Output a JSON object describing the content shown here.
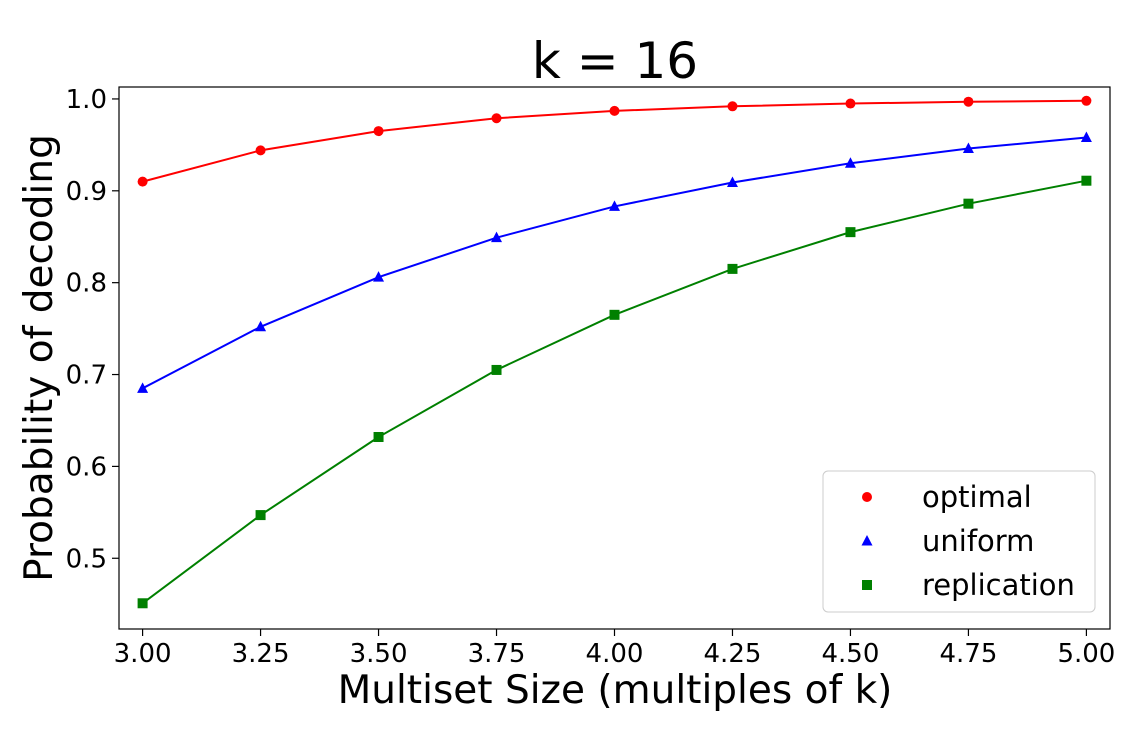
{
  "chart_data": {
    "type": "line",
    "title": "k = 16",
    "xlabel": "Multiset Size (multiples of k)",
    "ylabel": "Probability of decoding",
    "x": [
      3.0,
      3.25,
      3.5,
      3.75,
      4.0,
      4.25,
      4.5,
      4.75,
      5.0
    ],
    "x_tick_labels": [
      "3.00",
      "3.25",
      "3.50",
      "3.75",
      "4.00",
      "4.25",
      "4.50",
      "4.75",
      "5.00"
    ],
    "y_ticks": [
      0.5,
      0.6,
      0.7,
      0.8,
      0.9,
      1.0
    ],
    "y_tick_labels": [
      "0.5",
      "0.6",
      "0.7",
      "0.8",
      "0.9",
      "1.0"
    ],
    "xlim": [
      2.95,
      5.05
    ],
    "ylim": [
      0.423,
      1.013
    ],
    "grid": false,
    "legend_position": "lower-right",
    "series": [
      {
        "name": "optimal",
        "color": "#ff0000",
        "marker": "circle",
        "values": [
          0.91,
          0.944,
          0.965,
          0.979,
          0.987,
          0.992,
          0.995,
          0.997,
          0.998
        ]
      },
      {
        "name": "uniform",
        "color": "#0000ff",
        "marker": "triangle",
        "values": [
          0.685,
          0.752,
          0.806,
          0.849,
          0.883,
          0.909,
          0.93,
          0.946,
          0.958
        ]
      },
      {
        "name": "replication",
        "color": "#008000",
        "marker": "square",
        "values": [
          0.451,
          0.547,
          0.632,
          0.705,
          0.765,
          0.815,
          0.855,
          0.886,
          0.911
        ]
      }
    ]
  }
}
